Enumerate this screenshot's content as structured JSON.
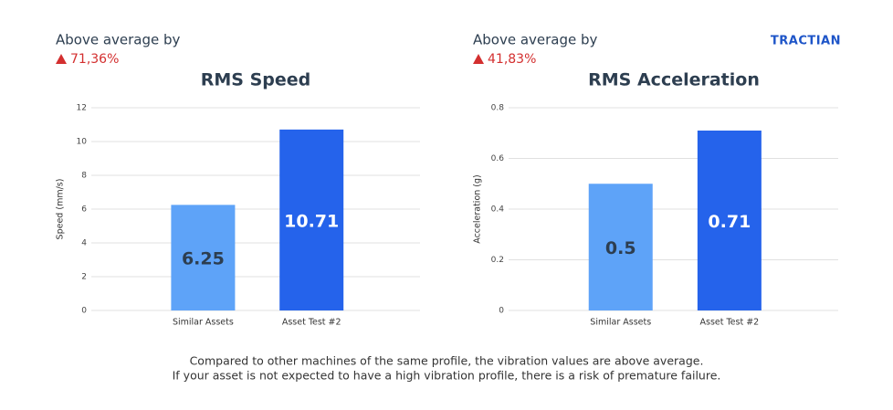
{
  "logo": "TRACTIAN",
  "footer": [
    "Compared to other machines of the same profile, the vibration values are above average.",
    "If your asset is not expected to have a high vibration profile, there is a risk of premature failure."
  ],
  "chart_data": [
    {
      "type": "bar",
      "annotation_label": "Above average by",
      "annotation": "71,36%",
      "title": "RMS Speed",
      "y_label": "Speed (mm/s)",
      "categories": [
        "Similar Assets",
        "Asset Test #2"
      ],
      "values": [
        6.25,
        10.71
      ],
      "colors": [
        "#5ea3f8",
        "#2563eb"
      ],
      "label_colors": [
        "#2d3e50",
        "#ffffff"
      ],
      "ylim": [
        0,
        12
      ],
      "yticks": [
        0,
        2,
        4,
        6,
        8,
        10,
        12
      ],
      "grid": true
    },
    {
      "type": "bar",
      "annotation_label": "Above average by",
      "annotation": "41,83%",
      "title": "RMS Acceleration",
      "y_label": "Acceleration (g)",
      "categories": [
        "Similar Assets",
        "Asset Test #2"
      ],
      "values": [
        0.5,
        0.71
      ],
      "colors": [
        "#5ea3f8",
        "#2563eb"
      ],
      "label_colors": [
        "#2d3e50",
        "#ffffff"
      ],
      "ylim": [
        0,
        0.8
      ],
      "yticks": [
        0,
        0.2,
        0.4,
        0.6,
        0.8
      ],
      "grid": true
    }
  ]
}
